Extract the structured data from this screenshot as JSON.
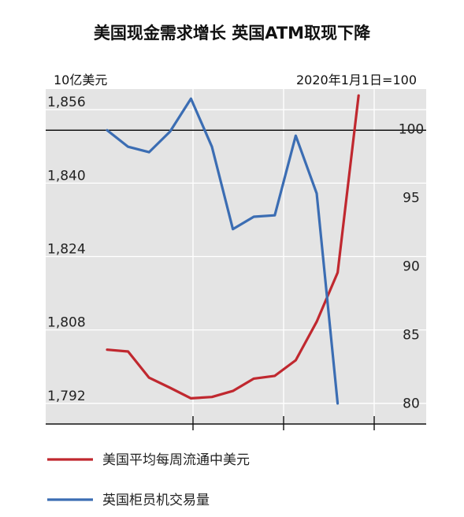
{
  "chart_data": {
    "type": "line",
    "title": "美国现金需求增长 英国ATM取现下降",
    "left_unit": "10亿美元",
    "right_unit": "2020年1月1日=100",
    "left_axis": {
      "ticks": [
        "1,856",
        "1,840",
        "1,824",
        "1,808",
        "1,792"
      ],
      "tick_values": [
        1856,
        1840,
        1824,
        1808,
        1792
      ],
      "ylim": [
        1787.5,
        1860.5
      ]
    },
    "right_axis": {
      "ticks": [
        "100",
        "95",
        "90",
        "85",
        "80"
      ],
      "tick_values": [
        100,
        95,
        90,
        85,
        80
      ],
      "ylim": [
        78.6,
        103.0
      ]
    },
    "reference_line": 100,
    "grid": true,
    "series": [
      {
        "name": "美国平均每周流通中美元",
        "axis": "left",
        "color": "#c0282f",
        "x": [
          0,
          1,
          2,
          3,
          4,
          5,
          6,
          7,
          8,
          9,
          10,
          11,
          12
        ],
        "values": [
          1803.7,
          1803.3,
          1797.6,
          1795.4,
          1793.1,
          1793.4,
          1794.7,
          1797.4,
          1798.0,
          1801.4,
          1809.8,
          1820.5,
          1859.1
        ]
      },
      {
        "name": "英国柜员机交易量",
        "axis": "right",
        "color": "#3b6db3",
        "x": [
          0,
          1,
          2,
          3,
          4,
          5,
          6,
          7,
          8,
          9,
          10,
          11
        ],
        "values": [
          100.0,
          98.8,
          98.4,
          99.9,
          102.3,
          98.8,
          92.8,
          93.7,
          93.8,
          99.6,
          95.4,
          80.1
        ]
      }
    ],
    "legend_position": "bottom"
  }
}
